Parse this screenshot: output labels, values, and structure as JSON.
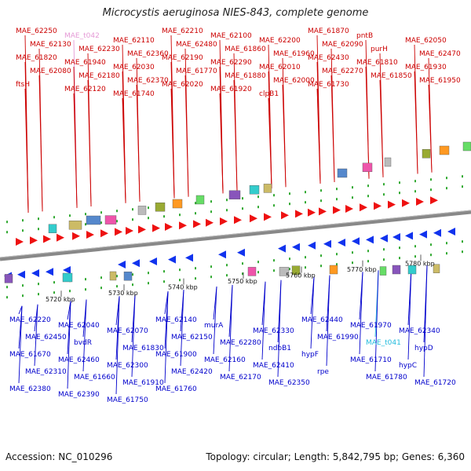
{
  "title": "Microcystis aeruginosa NIES-843, complete genome",
  "footer": {
    "accession": "Accession: NC_010296",
    "summary": "Topology: circular; Length: 5,842,795 bp; Genes: 6,360"
  },
  "colors": {
    "forward_label": "#cc0000",
    "reverse_label": "#0000cc",
    "trna_forward": "#e59ad6",
    "trna_reverse": "#22bbdd",
    "forward_arrow": "#ee1111",
    "reverse_arrow": "#1133ee",
    "backbone": "#888888",
    "tick": "#33aa33"
  },
  "scale_labels": [
    "5720 kbp",
    "5730 kbp",
    "5740 kbp",
    "5750 kbp",
    "5760 kbp",
    "5770 kbp",
    "5780 kbp"
  ],
  "top_labels": [
    "MAE_62250",
    "MAE_t042",
    "MAE_62110",
    "MAE_62210",
    "MAE_62100",
    "MAE_62200",
    "MAE_61870",
    "pntB",
    "MAE_62050",
    "MAE_62130",
    "MAE_62230",
    "MAE_62360",
    "MAE_62480",
    "MAE_61860",
    "MAE_61960",
    "MAE_62090",
    "purH",
    "MAE_62470",
    "MAE_61820",
    "MAE_61940",
    "MAE_62030",
    "MAE_62190",
    "MAE_62290",
    "MAE_62010",
    "MAE_62430",
    "MAE_61810",
    "MAE_61930",
    "MAE_62080",
    "MAE_62180",
    "MAE_62370",
    "MAE_61770",
    "MAE_61880",
    "MAE_62000",
    "MAE_62270",
    "MAE_61850",
    "MAE_61950",
    "ftsH",
    "MAE_62120",
    "MAE_61740",
    "MAE_62020",
    "MAE_61920",
    "clpB1",
    "MAE_61730"
  ],
  "bottom_labels": [
    "MAE_62220",
    "MAE_62040",
    "MAE_62070",
    "MAE_62140",
    "murA",
    "MAE_62330",
    "MAE_62440",
    "MAE_61970",
    "MAE_62340",
    "MAE_62450",
    "bvdR",
    "MAE_61830",
    "MAE_62150",
    "MAE_62280",
    "ndbB1",
    "MAE_61990",
    "MAE_t041",
    "hypD",
    "MAE_61670",
    "MAE_62460",
    "MAE_62300",
    "MAE_61900",
    "MAE_62160",
    "MAE_62410",
    "hypF",
    "MAE_61710",
    "hypC",
    "MAE_62310",
    "MAE_61660",
    "MAE_61910",
    "MAE_62420",
    "MAE_62170",
    "MAE_62350",
    "rpe",
    "MAE_61780",
    "MAE_61720",
    "MAE_62380",
    "MAE_62390",
    "MAE_61750",
    "MAE_61760"
  ]
}
